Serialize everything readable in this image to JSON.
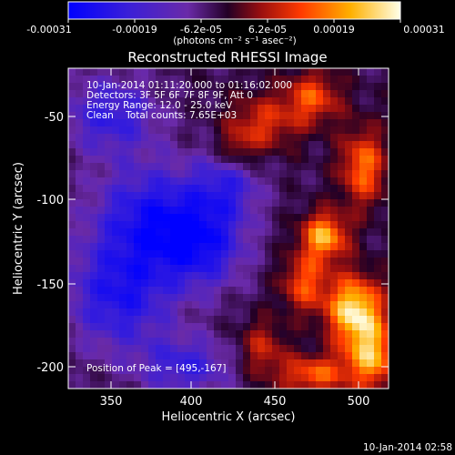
{
  "chart_data": {
    "type": "heatmap",
    "title": "Reconstructed RHESSI Image",
    "xlabel": "Heliocentric X (arcsec)",
    "ylabel": "Heliocentric Y (arcsec)",
    "xlim": [
      325,
      515
    ],
    "ylim": [
      -213,
      -28
    ],
    "x_ticks": [
      350,
      400,
      450,
      500
    ],
    "y_ticks": [
      -50,
      -100,
      -150,
      -200
    ],
    "colorbar": {
      "ticks": [
        "-0.00031",
        "-0.00019",
        "-6.2e-05",
        "6.2e-05",
        "0.00019",
        "0.00031"
      ],
      "range": [
        -0.00031,
        0.00031
      ],
      "unit_label": "(photons cm⁻² s⁻¹ asec⁻²)"
    },
    "annotations": [
      "10-Jan-2014 01:11:20.000 to 01:16:02.000",
      "Detectors: 3F 5F 6F 7F 8F 9F, Att 0",
      "Energy Range: 12.0 - 25.0 keV",
      "Clean    Total counts: 7.65E+03"
    ],
    "peak_label": "Position of Peak = [495,-167]",
    "peak": [
      495,
      -167
    ],
    "footer": "10-Jan-2014 02:58",
    "sources": [
      {
        "x": 495,
        "y": -167,
        "amp": 1.0,
        "sx": 12,
        "sy": 14
      },
      {
        "x": 477,
        "y": -125,
        "amp": 0.85,
        "sx": 10,
        "sy": 10
      },
      {
        "x": 505,
        "y": -195,
        "amp": 0.8,
        "sx": 12,
        "sy": 14
      },
      {
        "x": 465,
        "y": -152,
        "amp": 0.6,
        "sx": 10,
        "sy": 12
      },
      {
        "x": 470,
        "y": -45,
        "amp": 0.6,
        "sx": 12,
        "sy": 11
      },
      {
        "x": 440,
        "y": -60,
        "amp": 0.5,
        "sx": 15,
        "sy": 12
      },
      {
        "x": 500,
        "y": -85,
        "amp": 0.7,
        "sx": 10,
        "sy": 16
      },
      {
        "x": 440,
        "y": -190,
        "amp": 0.45,
        "sx": 10,
        "sy": 12
      },
      {
        "x": 470,
        "y": -205,
        "amp": 0.65,
        "sx": 14,
        "sy": 8
      },
      {
        "x": 425,
        "y": -75,
        "amp": 0.35,
        "sx": 8,
        "sy": 8
      },
      {
        "x": 350,
        "y": -55,
        "amp": -0.55,
        "sx": 20,
        "sy": 16
      },
      {
        "x": 375,
        "y": -115,
        "amp": -0.7,
        "sx": 25,
        "sy": 22
      },
      {
        "x": 355,
        "y": -160,
        "amp": -0.65,
        "sx": 22,
        "sy": 22
      },
      {
        "x": 405,
        "y": -130,
        "amp": -0.6,
        "sx": 18,
        "sy": 18
      },
      {
        "x": 395,
        "y": -200,
        "amp": -0.5,
        "sx": 20,
        "sy": 12
      },
      {
        "x": 420,
        "y": -95,
        "amp": -0.45,
        "sx": 14,
        "sy": 14
      }
    ]
  }
}
